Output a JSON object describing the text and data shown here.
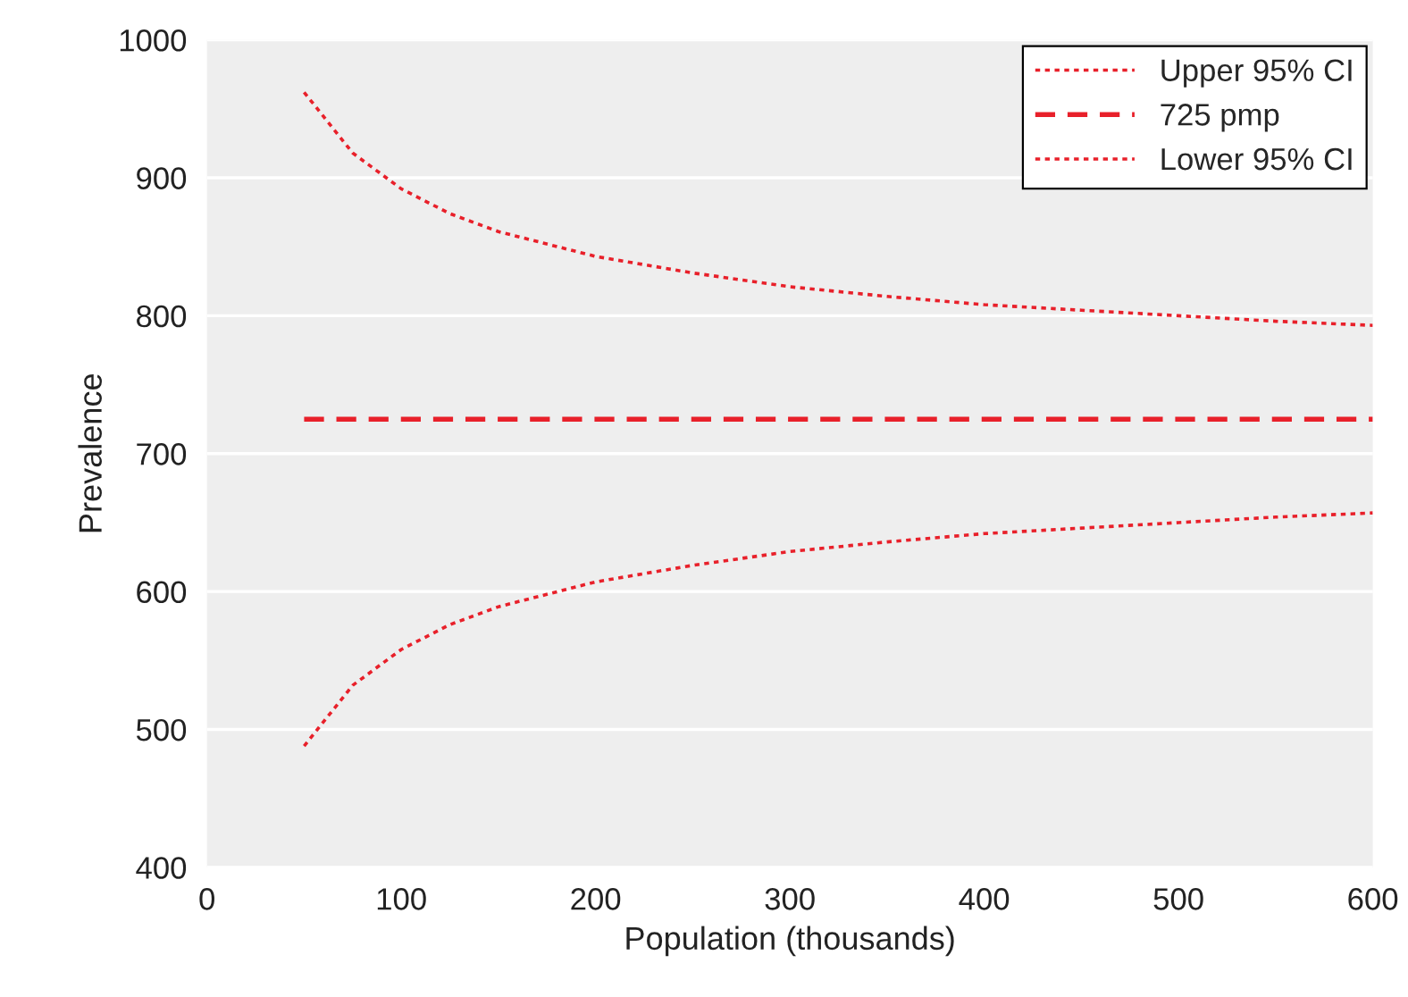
{
  "chart_data": {
    "type": "line",
    "xlabel": "Population (thousands)",
    "ylabel": "Prevalence",
    "xlim": [
      0,
      600
    ],
    "xticks": [
      0,
      100,
      200,
      300,
      400,
      500,
      600
    ],
    "ylim": [
      400,
      1000
    ],
    "yticks": [
      400,
      500,
      600,
      700,
      800,
      900,
      1000
    ],
    "grid": "y",
    "legend": "top right",
    "marker": "none",
    "series": [
      {
        "name": "Upper 95% CI",
        "color": "#e8202a",
        "line_style": "dotted",
        "x": [
          50,
          75,
          100,
          125,
          150,
          200,
          250,
          300,
          350,
          400,
          450,
          500,
          550,
          600
        ],
        "values": [
          962,
          918,
          892,
          874,
          861,
          843,
          831,
          821,
          814,
          808,
          804,
          800,
          796,
          793
        ]
      },
      {
        "name": "725 pmp",
        "color": "#e8202a",
        "line_style": "dashed",
        "x": [
          50,
          600
        ],
        "values": [
          725,
          725
        ]
      },
      {
        "name": "Lower 95% CI",
        "color": "#e8202a",
        "line_style": "dotted",
        "x": [
          50,
          75,
          100,
          125,
          150,
          200,
          250,
          300,
          350,
          400,
          450,
          500,
          550,
          600
        ],
        "values": [
          488,
          532,
          558,
          576,
          589,
          607,
          619,
          629,
          636,
          642,
          646,
          650,
          654,
          657
        ]
      }
    ]
  }
}
